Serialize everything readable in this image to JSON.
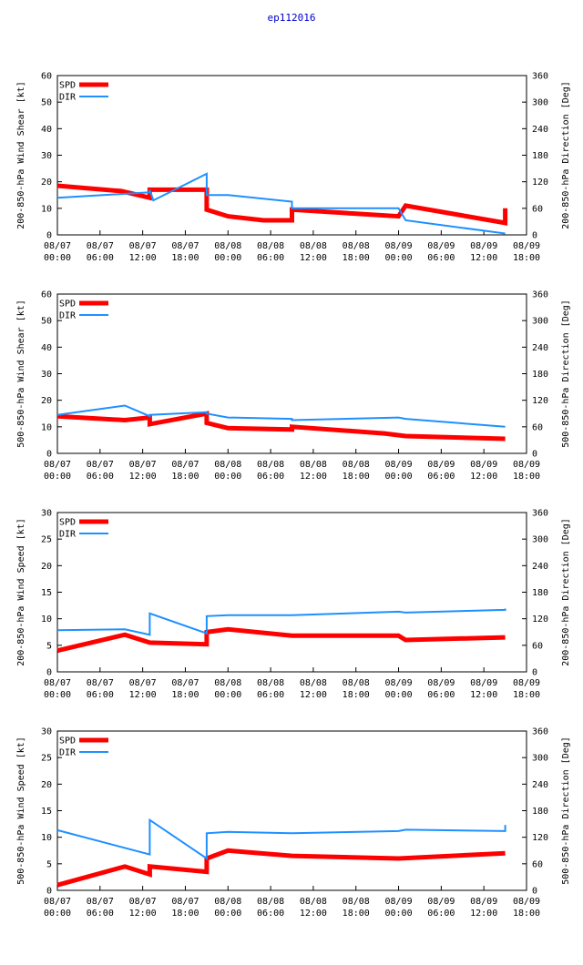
{
  "title": "ep112016",
  "colors": {
    "spd": "#ff0000",
    "dir": "#1e90ff",
    "axes": "#000000",
    "title": "#0000cc"
  },
  "x_ticks": [
    [
      "08/07",
      "00:00"
    ],
    [
      "08/07",
      "06:00"
    ],
    [
      "08/07",
      "12:00"
    ],
    [
      "08/07",
      "18:00"
    ],
    [
      "08/08",
      "00:00"
    ],
    [
      "08/08",
      "06:00"
    ],
    [
      "08/08",
      "12:00"
    ],
    [
      "08/08",
      "18:00"
    ],
    [
      "08/09",
      "00:00"
    ],
    [
      "08/09",
      "06:00"
    ],
    [
      "08/09",
      "12:00"
    ],
    [
      "08/09",
      "18:00"
    ]
  ],
  "chart_data": [
    {
      "type": "line",
      "ylabel": "200-850-hPa Wind Shear [kt]",
      "y2label": "200-850-hPa Direction [Deg]",
      "ylim": [
        0,
        60
      ],
      "yticks": [
        0,
        10,
        20,
        30,
        40,
        50,
        60
      ],
      "y2lim": [
        0,
        360
      ],
      "y2ticks": [
        0,
        60,
        120,
        180,
        240,
        300,
        360
      ],
      "xlim_hours": [
        0,
        66
      ],
      "legend": [
        "SPD",
        "DIR"
      ],
      "legend_position": "top-left",
      "series": [
        {
          "name": "SPD",
          "axis": "left",
          "points": [
            [
              0,
              18.5
            ],
            [
              9,
              16.5
            ],
            [
              13,
              14
            ],
            [
              13,
              17
            ],
            [
              21,
              17
            ],
            [
              21,
              9.5
            ],
            [
              24,
              7
            ],
            [
              29,
              5.5
            ],
            [
              33,
              5.5
            ],
            [
              33,
              9.5
            ],
            [
              48,
              7
            ],
            [
              49,
              11
            ],
            [
              63,
              4.5
            ],
            [
              63,
              10
            ]
          ]
        },
        {
          "name": "DIR",
          "axis": "right",
          "points": [
            [
              0,
              84
            ],
            [
              13,
              96
            ],
            [
              13,
              102
            ],
            [
              13.5,
              78
            ],
            [
              21,
              138
            ],
            [
              21,
              90
            ],
            [
              24,
              90
            ],
            [
              33,
              75
            ],
            [
              33,
              60
            ],
            [
              48,
              60
            ],
            [
              49,
              33
            ],
            [
              63,
              3
            ]
          ]
        }
      ]
    },
    {
      "type": "line",
      "ylabel": "500-850-hPa Wind Shear [kt]",
      "y2label": "500-850-hPa Direction [Deg]",
      "ylim": [
        0,
        60
      ],
      "yticks": [
        0,
        10,
        20,
        30,
        40,
        50,
        60
      ],
      "y2lim": [
        0,
        360
      ],
      "y2ticks": [
        0,
        60,
        120,
        180,
        240,
        300,
        360
      ],
      "xlim_hours": [
        0,
        66
      ],
      "legend": [
        "SPD",
        "DIR"
      ],
      "legend_position": "top-left",
      "series": [
        {
          "name": "SPD",
          "axis": "left",
          "points": [
            [
              0,
              14
            ],
            [
              9.5,
              12.5
            ],
            [
              13,
              13.5
            ],
            [
              13,
              11
            ],
            [
              21,
              15
            ],
            [
              21,
              11.5
            ],
            [
              24,
              9.5
            ],
            [
              33,
              9
            ],
            [
              33,
              10
            ],
            [
              46,
              7.5
            ],
            [
              49,
              6.5
            ],
            [
              63,
              5.5
            ]
          ]
        },
        {
          "name": "DIR",
          "axis": "right",
          "points": [
            [
              0,
              87
            ],
            [
              9.5,
              108
            ],
            [
              13,
              84
            ],
            [
              13,
              87
            ],
            [
              21,
              93
            ],
            [
              21,
              90
            ],
            [
              24,
              81
            ],
            [
              33,
              78
            ],
            [
              33,
              75
            ],
            [
              48,
              81
            ],
            [
              49,
              78
            ],
            [
              63,
              60
            ]
          ]
        }
      ]
    },
    {
      "type": "line",
      "ylabel": "200-850-hPa Wind Speed [kt]",
      "y2label": "200-850-hPa Direction [Deg]",
      "ylim": [
        0,
        30
      ],
      "yticks": [
        0,
        5,
        10,
        15,
        20,
        25,
        30
      ],
      "y2lim": [
        0,
        360
      ],
      "y2ticks": [
        0,
        60,
        120,
        180,
        240,
        300,
        360
      ],
      "xlim_hours": [
        0,
        66
      ],
      "legend": [
        "SPD",
        "DIR"
      ],
      "legend_position": "top-left",
      "series": [
        {
          "name": "SPD",
          "axis": "left",
          "points": [
            [
              0,
              4
            ],
            [
              9.5,
              7
            ],
            [
              13,
              5.5
            ],
            [
              21,
              5.2
            ],
            [
              21,
              7.5
            ],
            [
              24,
              8
            ],
            [
              33,
              6.8
            ],
            [
              48,
              6.8
            ],
            [
              49,
              6
            ],
            [
              63,
              6.5
            ]
          ]
        },
        {
          "name": "DIR",
          "axis": "right",
          "points": [
            [
              0,
              94
            ],
            [
              9.5,
              96
            ],
            [
              13,
              84
            ],
            [
              13,
              132
            ],
            [
              21,
              87
            ],
            [
              21,
              126
            ],
            [
              24,
              128
            ],
            [
              33,
              128
            ],
            [
              48,
              136
            ],
            [
              49,
              134
            ],
            [
              63,
              140
            ],
            [
              63,
              143
            ]
          ]
        }
      ]
    },
    {
      "type": "line",
      "ylabel": "500-850-hPa Wind Speed [kt]",
      "y2label": "500-850-hPa Direction [Deg]",
      "ylim": [
        0,
        30
      ],
      "yticks": [
        0,
        5,
        10,
        15,
        20,
        25,
        30
      ],
      "y2lim": [
        0,
        360
      ],
      "y2ticks": [
        0,
        60,
        120,
        180,
        240,
        300,
        360
      ],
      "xlim_hours": [
        0,
        66
      ],
      "legend": [
        "SPD",
        "DIR"
      ],
      "legend_position": "top-left",
      "series": [
        {
          "name": "SPD",
          "axis": "left",
          "points": [
            [
              0,
              1
            ],
            [
              9.5,
              4.5
            ],
            [
              13,
              3
            ],
            [
              13,
              4.5
            ],
            [
              21,
              3.5
            ],
            [
              21,
              6
            ],
            [
              24,
              7.5
            ],
            [
              33,
              6.5
            ],
            [
              48,
              6
            ],
            [
              63,
              7
            ]
          ]
        },
        {
          "name": "DIR",
          "axis": "right",
          "points": [
            [
              0,
              136
            ],
            [
              13,
              81
            ],
            [
              13,
              159
            ],
            [
              21,
              72
            ],
            [
              21,
              129
            ],
            [
              24,
              132
            ],
            [
              33,
              129
            ],
            [
              48,
              134
            ],
            [
              49,
              137
            ],
            [
              63,
              134
            ],
            [
              63,
              148
            ]
          ]
        }
      ]
    }
  ]
}
